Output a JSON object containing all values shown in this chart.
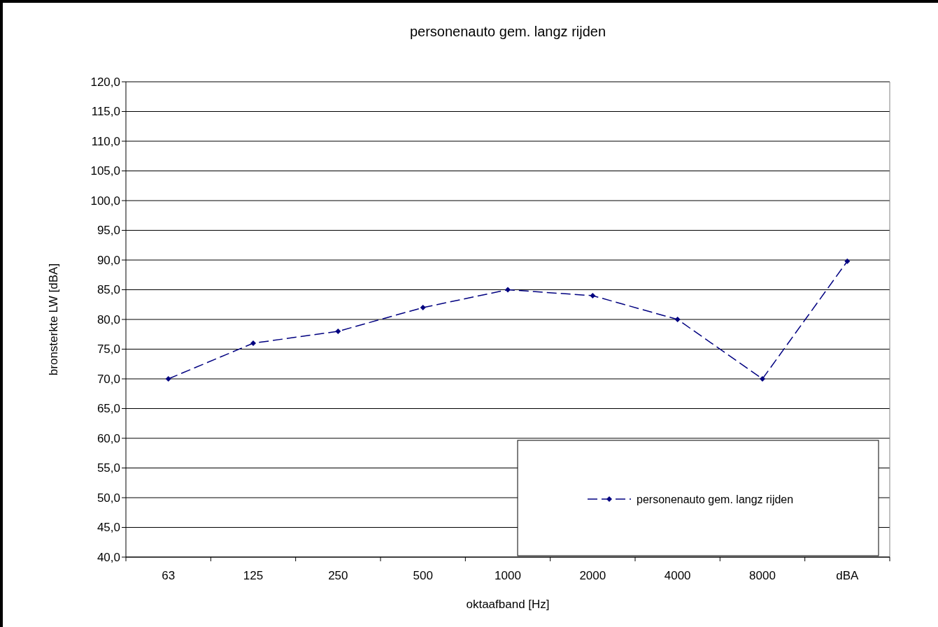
{
  "chart_data": {
    "type": "line",
    "title": "personenauto gem. langz rijden",
    "xlabel": "oktaafband [Hz]",
    "ylabel": "bronsterkte LW [dBA]",
    "categories": [
      "63",
      "125",
      "250",
      "500",
      "1000",
      "2000",
      "4000",
      "8000",
      "dBA"
    ],
    "series": [
      {
        "name": "personenauto gem. langz rijden",
        "color": "#000080",
        "values": [
          70,
          76,
          78,
          82,
          85,
          84,
          80,
          70,
          89.8
        ]
      }
    ],
    "ylim": [
      40,
      120
    ],
    "yticks": [
      {
        "value": 40,
        "label": "40,0"
      },
      {
        "value": 45,
        "label": "45,0"
      },
      {
        "value": 50,
        "label": "50,0"
      },
      {
        "value": 55,
        "label": "55,0"
      },
      {
        "value": 60,
        "label": "60,0"
      },
      {
        "value": 65,
        "label": "65,0"
      },
      {
        "value": 70,
        "label": "70,0"
      },
      {
        "value": 75,
        "label": "75,0"
      },
      {
        "value": 80,
        "label": "80,0"
      },
      {
        "value": 85,
        "label": "85,0"
      },
      {
        "value": 90,
        "label": "90,0"
      },
      {
        "value": 95,
        "label": "95,0"
      },
      {
        "value": 100,
        "label": "100,0"
      },
      {
        "value": 105,
        "label": "105,0"
      },
      {
        "value": 110,
        "label": "110,0"
      },
      {
        "value": 115,
        "label": "115,0"
      },
      {
        "value": 120,
        "label": "120,0"
      }
    ],
    "grid": "y",
    "legend": "bottom right",
    "marker": "diamond",
    "line_style": "dashed"
  }
}
